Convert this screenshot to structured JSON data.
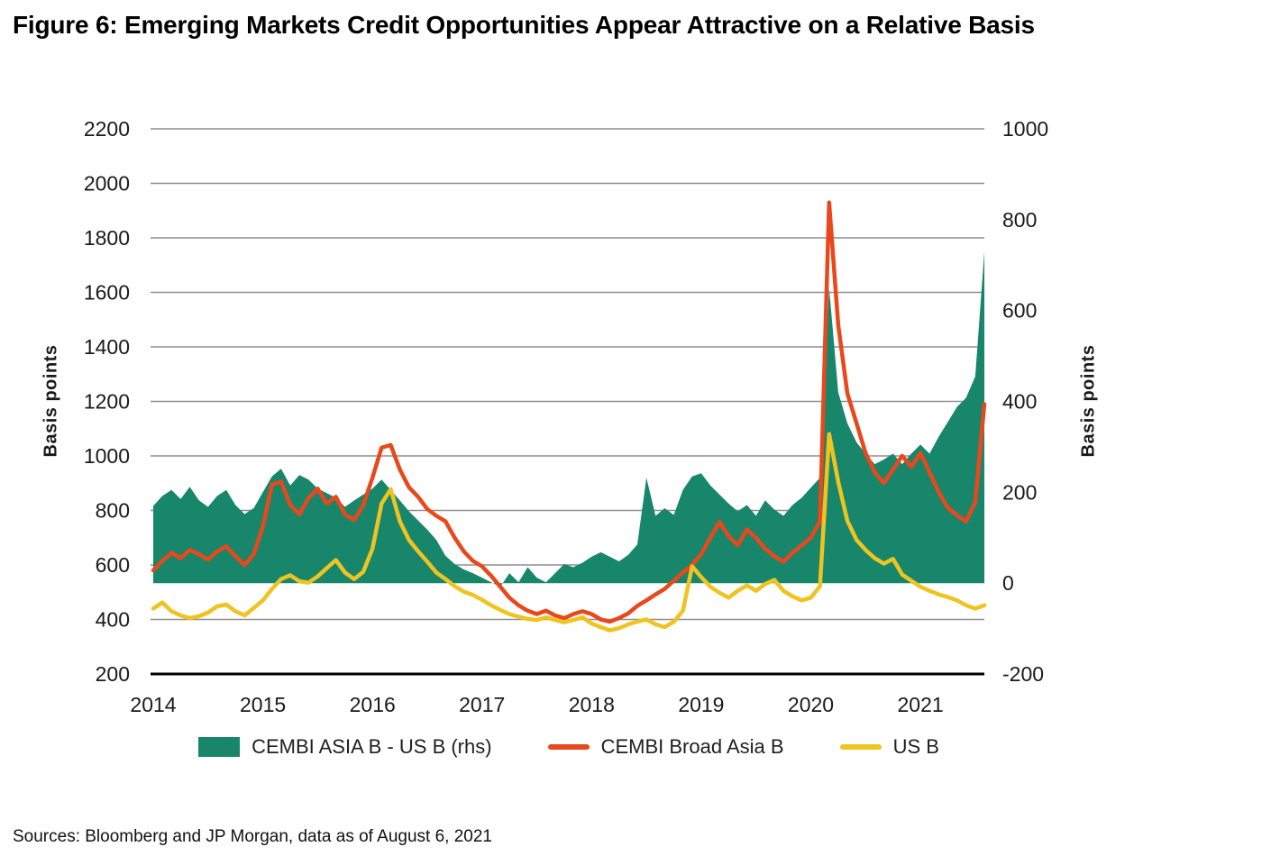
{
  "title": "Figure 6: Emerging Markets Credit Opportunities Appear Attractive on a Relative Basis",
  "source": "Sources: Bloomberg and JP Morgan, data as of August 6, 2021",
  "axes": {
    "left_label": "Basis points",
    "right_label": "Basis points"
  },
  "chart_data": {
    "type": "line",
    "title": "Figure 6: Emerging Markets Credit Opportunities Appear Attractive on a Relative Basis",
    "grid": "horizontal",
    "legend_position": "bottom",
    "x_unit": "month",
    "x_start": "2014-01",
    "x_end": "2021-08",
    "x_tick_labels": [
      "2014",
      "2015",
      "2016",
      "2017",
      "2018",
      "2019",
      "2020",
      "2021"
    ],
    "left_axis": {
      "label": "Basis points",
      "min": 200,
      "max": 2200,
      "ticks": [
        200,
        400,
        600,
        800,
        1000,
        1200,
        1400,
        1600,
        1800,
        2000,
        2200
      ]
    },
    "right_axis": {
      "label": "Basis points",
      "min": -200,
      "max": 1000,
      "ticks": [
        -200,
        0,
        200,
        400,
        600,
        800,
        1000
      ]
    },
    "series": [
      {
        "name": "CEMBI ASIA B - US B (rhs)",
        "axis": "right",
        "type": "area",
        "color": "#17866b",
        "values": [
          170,
          192,
          205,
          185,
          212,
          182,
          168,
          192,
          205,
          172,
          152,
          165,
          200,
          235,
          252,
          215,
          238,
          228,
          208,
          198,
          188,
          168,
          182,
          195,
          208,
          228,
          205,
          182,
          158,
          138,
          118,
          95,
          60,
          42,
          30,
          22,
          12,
          2,
          -8,
          22,
          2,
          35,
          12,
          2,
          22,
          42,
          35,
          45,
          58,
          68,
          58,
          48,
          62,
          85,
          232,
          148,
          165,
          150,
          205,
          235,
          242,
          215,
          195,
          175,
          158,
          172,
          148,
          182,
          162,
          148,
          172,
          188,
          210,
          232,
          650,
          420,
          352,
          310,
          285,
          262,
          272,
          285,
          262,
          285,
          305,
          285,
          322,
          355,
          388,
          408,
          455,
          730
        ]
      },
      {
        "name": "CEMBI Broad Asia B",
        "axis": "left",
        "type": "line",
        "color": "#e8481c",
        "values": [
          580,
          615,
          645,
          625,
          655,
          640,
          620,
          650,
          668,
          632,
          600,
          640,
          740,
          895,
          905,
          820,
          785,
          845,
          880,
          825,
          850,
          785,
          765,
          820,
          920,
          1030,
          1040,
          950,
          885,
          850,
          805,
          780,
          760,
          700,
          650,
          615,
          595,
          560,
          520,
          480,
          452,
          432,
          420,
          432,
          415,
          405,
          420,
          430,
          420,
          400,
          392,
          405,
          422,
          450,
          470,
          492,
          512,
          542,
          572,
          600,
          640,
          700,
          758,
          705,
          672,
          730,
          700,
          660,
          632,
          612,
          645,
          672,
          700,
          760,
          1930,
          1480,
          1230,
          1120,
          1010,
          940,
          900,
          950,
          1000,
          960,
          1010,
          940,
          868,
          810,
          782,
          760,
          830,
          1190
        ]
      },
      {
        "name": "US B",
        "axis": "left",
        "type": "line",
        "color": "#efc320",
        "values": [
          440,
          462,
          430,
          415,
          405,
          412,
          425,
          448,
          455,
          430,
          415,
          442,
          470,
          512,
          548,
          562,
          540,
          535,
          558,
          588,
          618,
          572,
          548,
          575,
          660,
          825,
          878,
          760,
          692,
          650,
          612,
          572,
          548,
          522,
          502,
          490,
          472,
          452,
          435,
          420,
          410,
          402,
          398,
          408,
          398,
          390,
          398,
          408,
          385,
          372,
          360,
          368,
          382,
          392,
          400,
          382,
          372,
          392,
          432,
          595,
          555,
          520,
          498,
          480,
          505,
          525,
          505,
          530,
          545,
          505,
          485,
          470,
          480,
          522,
          1080,
          905,
          762,
          692,
          655,
          625,
          605,
          622,
          565,
          542,
          520,
          505,
          492,
          482,
          470,
          452,
          440,
          452
        ]
      }
    ]
  }
}
